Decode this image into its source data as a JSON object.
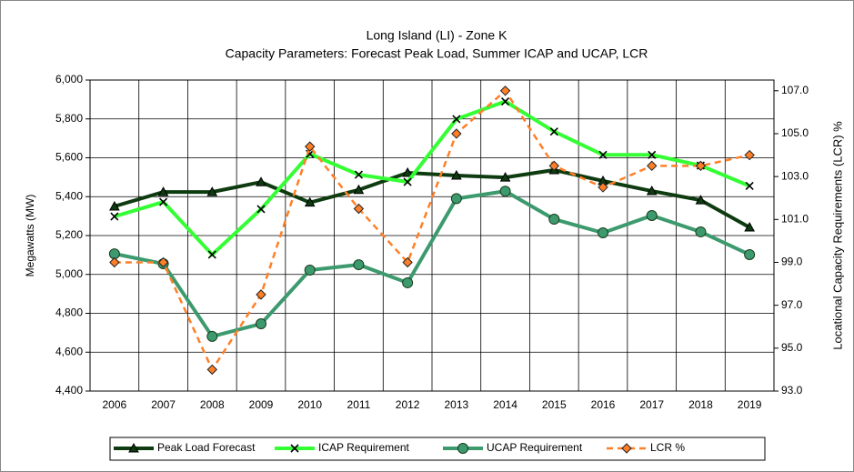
{
  "chart_data": {
    "type": "line",
    "title": "Long Island (LI) - Zone K",
    "subtitle": "Capacity Parameters: Forecast Peak Load, Summer ICAP and UCAP, LCR",
    "ylabel": "Megawatts (MW)",
    "y2label": "Locational Capacity Requirements (LCR) %",
    "categories": [
      "2006",
      "2007",
      "2008",
      "2009",
      "2010",
      "2011",
      "2012",
      "2013",
      "2014",
      "2015",
      "2016",
      "2017",
      "2018",
      "2019"
    ],
    "ylim": [
      4400,
      6000
    ],
    "yticks": [
      {
        "value": 4400,
        "label": "4,400"
      },
      {
        "value": 4600,
        "label": "4,600"
      },
      {
        "value": 4800,
        "label": "4,800"
      },
      {
        "value": 5000,
        "label": "5,000"
      },
      {
        "value": 5200,
        "label": "5,200"
      },
      {
        "value": 5400,
        "label": "5,400"
      },
      {
        "value": 5600,
        "label": "5,600"
      },
      {
        "value": 5800,
        "label": "5,800"
      },
      {
        "value": 6000,
        "label": "6,000"
      }
    ],
    "y2lim": [
      93,
      107.5
    ],
    "y2ticks": [
      {
        "value": 93,
        "label": "93.0"
      },
      {
        "value": 95,
        "label": "95.0"
      },
      {
        "value": 97,
        "label": "97.0"
      },
      {
        "value": 99,
        "label": "99.0"
      },
      {
        "value": 101,
        "label": "101.0"
      },
      {
        "value": 103,
        "label": "103.0"
      },
      {
        "value": 105,
        "label": "105.0"
      },
      {
        "value": 107,
        "label": "107.0"
      }
    ],
    "grid": true,
    "legend": "bottom",
    "series": [
      {
        "name": "Peak Load Forecast",
        "color": "#0e3b10",
        "marker": "triangle",
        "values": [
          5350,
          5424,
          5424,
          5475,
          5370,
          5435,
          5523,
          5509,
          5499,
          5537,
          5481,
          5429,
          5382,
          5242
        ]
      },
      {
        "name": "ICAP Requirement",
        "color": "#33ff33",
        "marker": "x",
        "values": [
          5298,
          5373,
          5102,
          5336,
          5620,
          5513,
          5476,
          5799,
          5890,
          5735,
          5615,
          5615,
          5560,
          5455
        ]
      },
      {
        "name": "UCAP Requirement",
        "color": "#3d9a6e",
        "marker": "circle",
        "values": [
          5106,
          5055,
          4681,
          4746,
          5022,
          5050,
          4957,
          5390,
          5428,
          5284,
          5214,
          5303,
          5219,
          5102
        ]
      },
      {
        "name": "LCR %",
        "color": "#ff7f27",
        "marker": "diamond",
        "dashed": true,
        "axis": "y2",
        "values": [
          99.0,
          99.0,
          94.0,
          97.5,
          104.4,
          101.5,
          99.0,
          105.0,
          107.0,
          103.5,
          102.5,
          103.5,
          103.5,
          104.0
        ]
      }
    ]
  }
}
